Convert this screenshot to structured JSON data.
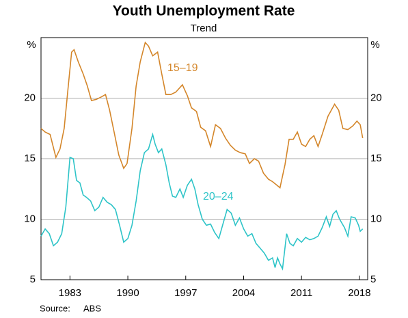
{
  "chart_data": {
    "type": "line",
    "title": "Youth Unemployment Rate",
    "subtitle": "Trend",
    "y_unit": "%",
    "source_label": "Source:",
    "source": "ABS",
    "xlim": [
      1979.5,
      2019
    ],
    "xticks": [
      1983,
      1990,
      1997,
      2004,
      2011,
      2018
    ],
    "ylim": [
      5,
      25
    ],
    "yticks": [
      5,
      10,
      15,
      20
    ],
    "y2lim": [
      5,
      25
    ],
    "y2ticks": [
      5,
      10,
      15,
      20
    ],
    "grid": true,
    "series": [
      {
        "name": "15–19",
        "color": "#d4862a",
        "x": [
          1979.5,
          1980,
          1980.6,
          1981.3,
          1981.8,
          1982.3,
          1982.8,
          1983.2,
          1983.5,
          1984,
          1984.6,
          1985.1,
          1985.6,
          1986.2,
          1986.8,
          1987.3,
          1987.8,
          1988.4,
          1988.9,
          1989.5,
          1989.9,
          1990.5,
          1991,
          1991.5,
          1992.1,
          1992.5,
          1993,
          1993.6,
          1994.1,
          1994.6,
          1995.2,
          1995.8,
          1996.6,
          1997.2,
          1997.7,
          1998.3,
          1998.8,
          1999.4,
          2000,
          2000.6,
          2001.2,
          2001.8,
          2002.4,
          2003,
          2003.6,
          2004.2,
          2004.7,
          2005.3,
          2005.8,
          2006.4,
          2007,
          2007.5,
          2008.4,
          2009,
          2009.5,
          2010,
          2010.5,
          2011,
          2011.5,
          2012,
          2012.5,
          2013,
          2013.5,
          2014.2,
          2015,
          2015.5,
          2016,
          2016.6,
          2017.2,
          2017.7,
          2018.1,
          2018.4
        ],
        "values": [
          17.5,
          17.2,
          17.0,
          15.1,
          15.8,
          17.5,
          21.0,
          23.8,
          24.0,
          23.0,
          22.0,
          21.0,
          19.8,
          19.9,
          20.1,
          20.3,
          19.0,
          17.0,
          15.3,
          14.2,
          14.6,
          17.5,
          21.0,
          23.0,
          24.6,
          24.3,
          23.5,
          23.8,
          22.0,
          20.3,
          20.3,
          20.5,
          21.1,
          20.2,
          19.2,
          18.9,
          17.6,
          17.3,
          16.0,
          17.8,
          17.5,
          16.7,
          16.1,
          15.7,
          15.5,
          15.4,
          14.6,
          15.0,
          14.8,
          13.8,
          13.3,
          13.1,
          12.6,
          14.5,
          16.6,
          16.6,
          17.2,
          16.2,
          16.0,
          16.6,
          16.9,
          16.0,
          17.0,
          18.5,
          19.5,
          19.0,
          17.5,
          17.4,
          17.7,
          18.1,
          17.8,
          16.7
        ]
      },
      {
        "name": "20–24",
        "color": "#2ec4c8",
        "x": [
          1979.5,
          1980,
          1980.5,
          1981,
          1981.5,
          1982,
          1982.5,
          1983,
          1983.4,
          1983.8,
          1984.2,
          1984.6,
          1985,
          1985.5,
          1986,
          1986.5,
          1987,
          1987.5,
          1988,
          1988.5,
          1989,
          1989.5,
          1990,
          1990.5,
          1991,
          1991.5,
          1992,
          1992.5,
          1993,
          1993.3,
          1993.7,
          1994.1,
          1994.6,
          1995,
          1995.4,
          1995.8,
          1996.3,
          1996.7,
          1997.2,
          1997.7,
          1998.1,
          1998.5,
          1999,
          1999.5,
          2000,
          2000.5,
          2001,
          2001.5,
          2002,
          2002.5,
          2003,
          2003.5,
          2004,
          2004.5,
          2005,
          2005.5,
          2006,
          2006.5,
          2007,
          2007.5,
          2007.8,
          2008.1,
          2008.4,
          2008.7,
          2009.2,
          2009.6,
          2010,
          2010.5,
          2011,
          2011.5,
          2012,
          2012.5,
          2013,
          2013.5,
          2014,
          2014.4,
          2014.8,
          2015.2,
          2015.6,
          2016.2,
          2016.6,
          2017,
          2017.5,
          2017.9,
          2018.1,
          2018.4
        ],
        "values": [
          8.6,
          9.2,
          8.8,
          7.8,
          8.1,
          8.8,
          11.0,
          15.1,
          15.0,
          13.2,
          13.0,
          12.0,
          11.8,
          11.5,
          10.7,
          11.0,
          11.8,
          11.4,
          11.2,
          10.8,
          9.5,
          8.1,
          8.4,
          9.5,
          11.5,
          14.0,
          15.5,
          15.8,
          17.0,
          16.2,
          15.5,
          15.8,
          14.5,
          13.0,
          11.9,
          11.8,
          12.5,
          11.8,
          12.8,
          13.3,
          12.5,
          11.2,
          10.0,
          9.5,
          9.6,
          8.9,
          8.4,
          9.6,
          10.8,
          10.5,
          9.5,
          10.1,
          9.2,
          8.6,
          8.8,
          8.0,
          7.6,
          7.2,
          6.6,
          6.8,
          6.0,
          6.8,
          6.3,
          5.9,
          8.8,
          8.0,
          7.8,
          8.4,
          8.1,
          8.5,
          8.3,
          8.4,
          8.6,
          9.3,
          10.2,
          9.4,
          10.4,
          10.7,
          10.0,
          9.3,
          8.6,
          10.2,
          10.1,
          9.5,
          9.0,
          9.2
        ]
      }
    ]
  }
}
